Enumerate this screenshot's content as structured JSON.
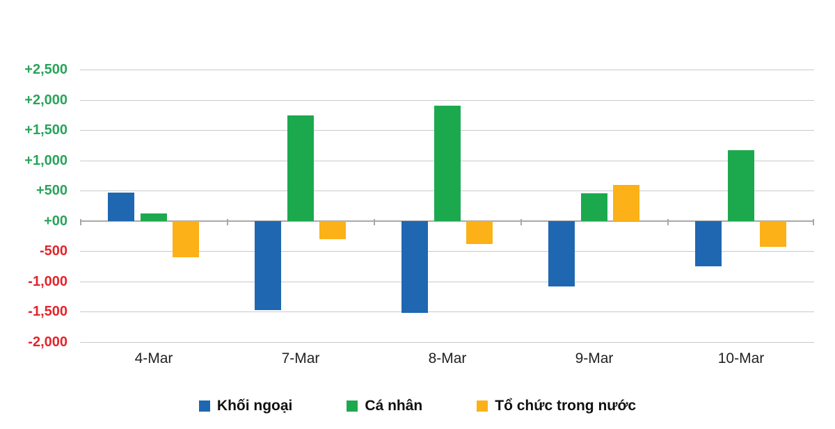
{
  "chart_data": {
    "type": "bar",
    "title": "",
    "categories": [
      "4-Mar",
      "7-Mar",
      "8-Mar",
      "9-Mar",
      "10-Mar"
    ],
    "series": [
      {
        "name": "Khối ngoại",
        "color": "#1F67B1",
        "values": [
          470,
          -1470,
          -1520,
          -1080,
          -750
        ]
      },
      {
        "name": "Cá nhân",
        "color": "#1CA94E",
        "values": [
          130,
          1750,
          1900,
          460,
          1170
        ]
      },
      {
        "name": "Tổ chức trong nước",
        "color": "#FBB117",
        "values": [
          -600,
          -300,
          -380,
          600,
          -420
        ]
      }
    ],
    "ylim": [
      -2000,
      2500
    ],
    "y_tick_step": 500,
    "y_tick_labels": [
      "+2,500",
      "+2,000",
      "+1,500",
      "+1,000",
      "+500",
      "+00",
      "-500",
      "-1,000",
      "-1,500",
      "-2,000"
    ],
    "xlabel": "",
    "ylabel": "",
    "grid": true,
    "legend_position": "bottom",
    "colors": {
      "positive_tick_label": "#29A35B",
      "negative_tick_label": "#E3242B",
      "gridline": "#C9C9C9",
      "axis_line": "#A8A8A8",
      "x_tick_label": "#222222",
      "legend_text": "#111111",
      "background": "#FFFFFF"
    }
  }
}
